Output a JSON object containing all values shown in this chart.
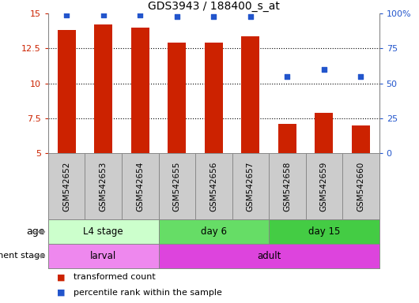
{
  "title": "GDS3943 / 188400_s_at",
  "samples": [
    "GSM542652",
    "GSM542653",
    "GSM542654",
    "GSM542655",
    "GSM542656",
    "GSM542657",
    "GSM542658",
    "GSM542659",
    "GSM542660"
  ],
  "transformed_count": [
    13.8,
    14.2,
    14.0,
    12.9,
    12.9,
    13.4,
    7.1,
    7.9,
    7.0
  ],
  "percentile_rank": [
    99,
    99,
    99,
    98,
    98,
    98,
    55,
    60,
    55
  ],
  "ylim_left": [
    5,
    15
  ],
  "ylim_right": [
    0,
    100
  ],
  "yticks_left": [
    5,
    7.5,
    10,
    12.5,
    15
  ],
  "yticks_right": [
    0,
    25,
    50,
    75,
    100
  ],
  "ytick_labels_right": [
    "0",
    "25",
    "50",
    "75",
    "100%"
  ],
  "bar_color": "#cc2200",
  "dot_color": "#2255cc",
  "bar_width": 0.5,
  "age_groups": [
    {
      "label": "L4 stage",
      "start": 0,
      "end": 3,
      "color": "#ccffcc"
    },
    {
      "label": "day 6",
      "start": 3,
      "end": 6,
      "color": "#66dd66"
    },
    {
      "label": "day 15",
      "start": 6,
      "end": 9,
      "color": "#44cc44"
    }
  ],
  "dev_groups": [
    {
      "label": "larval",
      "start": 0,
      "end": 3,
      "color": "#ee88ee"
    },
    {
      "label": "adult",
      "start": 3,
      "end": 9,
      "color": "#dd44dd"
    }
  ],
  "legend_items": [
    {
      "color": "#cc2200",
      "label": "transformed count"
    },
    {
      "color": "#2255cc",
      "label": "percentile rank within the sample"
    }
  ],
  "tick_label_color_left": "#cc2200",
  "tick_label_color_right": "#2255cc",
  "sample_bg_color": "#cccccc",
  "sample_border_color": "#888888"
}
